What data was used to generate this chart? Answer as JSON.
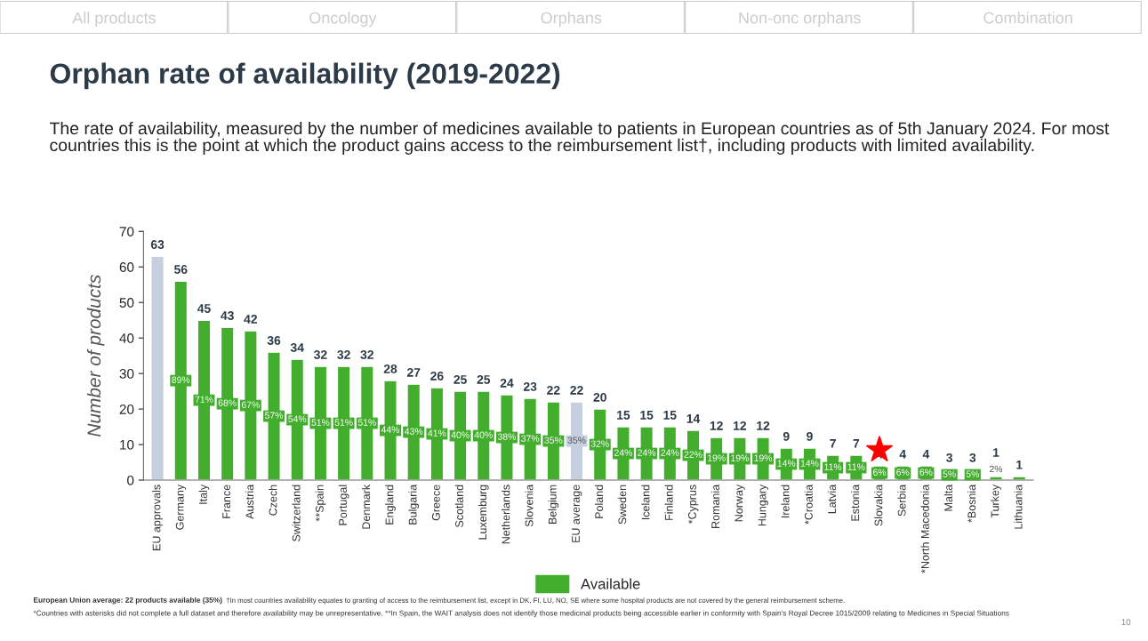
{
  "chart_data": {
    "type": "bar",
    "title": "Orphan rate of availability (2019-2022)",
    "subtitle": "The rate of availability, measured by the number of medicines available to patients in European countries as of 5th January 2024. For most countries this is the point at which the product gains access to the reimbursement list†, including products with limited availability.",
    "ylabel": "Number of products",
    "categories": [
      "EU approvals",
      "Germany",
      "Italy",
      "France",
      "Austria",
      "Czech",
      "Switzerland",
      "**Spain",
      "Portugal",
      "Denmark",
      "England",
      "Bulgaria",
      "Greece",
      "Scotland",
      "Luxemburg",
      "Netherlands",
      "Slovenia",
      "Belgium",
      "EU average",
      "Poland",
      "Sweden",
      "Iceland",
      "Finland",
      "*Cyprus",
      "Romania",
      "Norway",
      "Hungary",
      "Ireland",
      "*Croatia",
      "Latvia",
      "Estonia",
      "Slovakia",
      "Serbia",
      "*North Macedonia",
      "Malta",
      "*Bosnia",
      "Turkey",
      "Lithuania"
    ],
    "series": [
      {
        "name": "Available",
        "color": "#43ad2e",
        "colors": [
          "#c5cfe0",
          "#43ad2e",
          "#43ad2e",
          "#43ad2e",
          "#43ad2e",
          "#43ad2e",
          "#43ad2e",
          "#43ad2e",
          "#43ad2e",
          "#43ad2e",
          "#43ad2e",
          "#43ad2e",
          "#43ad2e",
          "#43ad2e",
          "#43ad2e",
          "#43ad2e",
          "#43ad2e",
          "#43ad2e",
          "#c5cfe0",
          "#43ad2e",
          "#43ad2e",
          "#43ad2e",
          "#43ad2e",
          "#43ad2e",
          "#43ad2e",
          "#43ad2e",
          "#43ad2e",
          "#43ad2e",
          "#43ad2e",
          "#43ad2e",
          "#43ad2e",
          "#43ad2e",
          "#43ad2e",
          "#43ad2e",
          "#43ad2e",
          "#43ad2e",
          "#43ad2e",
          "#43ad2e"
        ],
        "values": [
          63,
          56,
          45,
          43,
          42,
          36,
          34,
          32,
          32,
          32,
          28,
          27,
          26,
          25,
          25,
          24,
          23,
          22,
          22,
          20,
          15,
          15,
          15,
          14,
          12,
          12,
          12,
          9,
          9,
          7,
          7,
          4,
          4,
          4,
          3,
          3,
          1,
          1
        ]
      }
    ],
    "data_labels": true,
    "value_labels": [
      null,
      "89%",
      "71%",
      "68%",
      "67%",
      "57%",
      "54%",
      "51%",
      "51%",
      "51%",
      "44%",
      "43%",
      "41%",
      "40%",
      "40%",
      "38%",
      "37%",
      "35%",
      "35%",
      "32%",
      "24%",
      "24%",
      "24%",
      "22%",
      "19%",
      "19%",
      "19%",
      "14%",
      "14%",
      "11%",
      "11%",
      "6%",
      "6%",
      "6%",
      "5%",
      "5%",
      "2%",
      null
    ],
    "ylim": [
      0,
      70
    ],
    "yticks": [
      0,
      10,
      20,
      30,
      40,
      50,
      60,
      70
    ],
    "grid": false,
    "legend": "bottom",
    "annotations": [
      "All products",
      "Oncology",
      "Orphans",
      "Non-onc orphans",
      "Combination",
      "European Union average: 22 products available (35%)",
      "†In most countries availability equates to granting of access to the reimbursement list, except in DK, FI, LU, NO, SE where some hospital products are not covered by the general reimbursement scheme.",
      "*Countries with asterisks did not complete a full dataset and therefore availability may be unrepresentative. **In Spain, the WAIT analysis does not identify those medicinal products being accessible earlier in conformity with Spain's Royal Decree 1015/2009 relating to Medicines in Special Situations",
      "10"
    ]
  }
}
